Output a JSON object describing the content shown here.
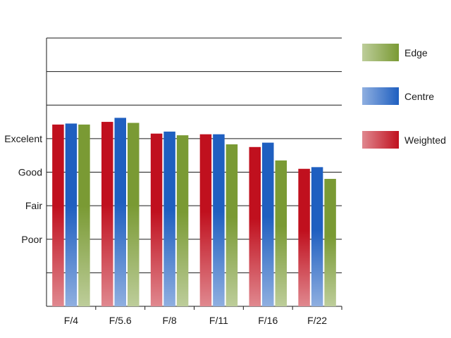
{
  "chart_data": {
    "type": "bar",
    "categories": [
      "F/4",
      "F/5.6",
      "F/8",
      "F/11",
      "F/16",
      "F/22"
    ],
    "y_ticks": [
      {
        "label": "Poor",
        "value": 1
      },
      {
        "label": "Fair",
        "value": 2
      },
      {
        "label": "Good",
        "value": 3
      },
      {
        "label": "Excelent",
        "value": 4
      }
    ],
    "ylim": [
      -1,
      7
    ],
    "grid": true,
    "legend_position": "right",
    "series": [
      {
        "name": "Weighted",
        "color": "#c0101e",
        "values": [
          4.42,
          4.5,
          4.15,
          4.13,
          3.75,
          3.1
        ]
      },
      {
        "name": "Centre",
        "color": "#1f5fc0",
        "values": [
          4.45,
          4.62,
          4.21,
          4.13,
          3.88,
          3.15
        ]
      },
      {
        "name": "Edge",
        "color": "#7a9a34",
        "values": [
          4.42,
          4.47,
          4.1,
          3.83,
          3.35,
          2.8
        ]
      }
    ],
    "legend_order": [
      "Edge",
      "Centre",
      "Weighted"
    ]
  }
}
